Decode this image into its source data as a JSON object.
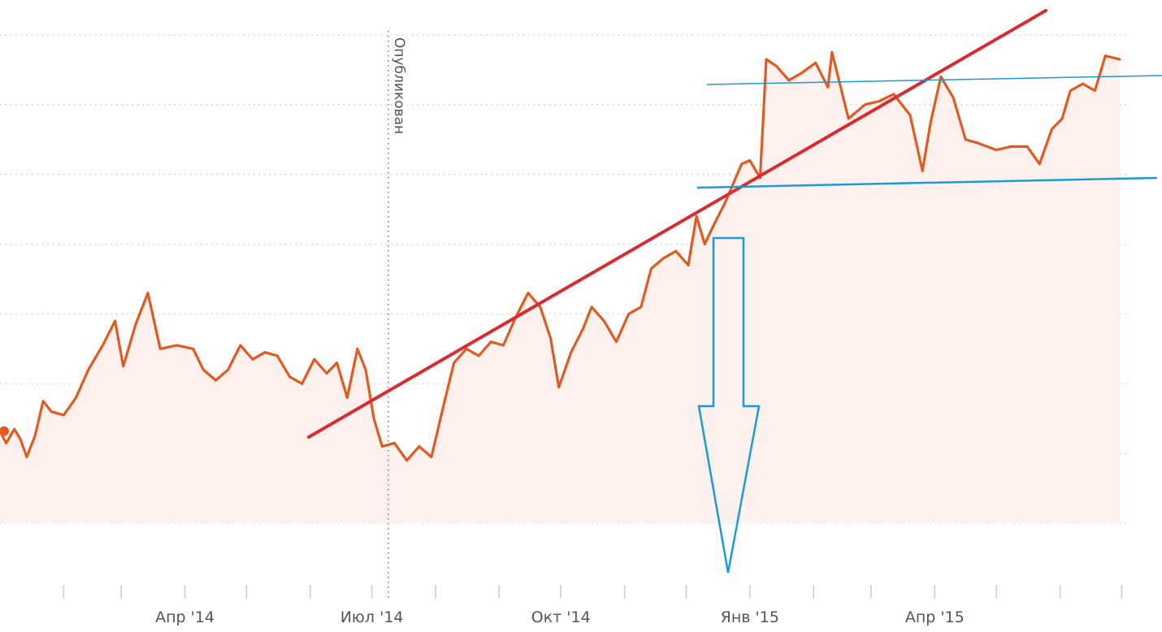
{
  "chart_data": {
    "type": "area",
    "title": "",
    "xlabel": "",
    "ylabel": "",
    "x_ticks": [
      {
        "label": "Апр '14",
        "date": "2014-04-01"
      },
      {
        "label": "Июл '14",
        "date": "2014-07-01"
      },
      {
        "label": "Окт '14",
        "date": "2014-10-01"
      },
      {
        "label": "Янв '15",
        "date": "2015-01-01"
      },
      {
        "label": "Апр '15",
        "date": "2015-04-01"
      }
    ],
    "y_tick_labels_visible": false,
    "grid": "horizontal dotted",
    "series": [
      {
        "points": [
          [
            "2014-01-01",
            43.2
          ],
          [
            "2014-01-04",
            41.5
          ],
          [
            "2014-01-08",
            43.5
          ],
          [
            "2014-01-11",
            42.0
          ],
          [
            "2014-01-14",
            39.5
          ],
          [
            "2014-01-18",
            42.5
          ],
          [
            "2014-01-22",
            47.5
          ],
          [
            "2014-01-26",
            46.0
          ],
          [
            "2014-02-01",
            45.5
          ],
          [
            "2014-02-07",
            48.0
          ],
          [
            "2014-02-13",
            52.0
          ],
          [
            "2014-02-20",
            55.5
          ],
          [
            "2014-02-26",
            59.0
          ],
          [
            "2014-03-02",
            52.5
          ],
          [
            "2014-03-08",
            58.5
          ],
          [
            "2014-03-14",
            63.0
          ],
          [
            "2014-03-20",
            55.0
          ],
          [
            "2014-03-28",
            55.5
          ],
          [
            "2014-04-05",
            55.0
          ],
          [
            "2014-04-10",
            52.0
          ],
          [
            "2014-04-16",
            50.5
          ],
          [
            "2014-04-22",
            52.0
          ],
          [
            "2014-04-28",
            55.5
          ],
          [
            "2014-05-04",
            53.5
          ],
          [
            "2014-05-10",
            54.5
          ],
          [
            "2014-05-16",
            54.0
          ],
          [
            "2014-05-22",
            51.0
          ],
          [
            "2014-05-28",
            50.0
          ],
          [
            "2014-06-03",
            53.5
          ],
          [
            "2014-06-09",
            51.5
          ],
          [
            "2014-06-14",
            53.0
          ],
          [
            "2014-06-19",
            48.0
          ],
          [
            "2014-06-24",
            55.0
          ],
          [
            "2014-06-28",
            52.0
          ],
          [
            "2014-07-02",
            45.0
          ],
          [
            "2014-07-06",
            41.0
          ],
          [
            "2014-07-12",
            41.5
          ],
          [
            "2014-07-18",
            39.0
          ],
          [
            "2014-07-24",
            41.0
          ],
          [
            "2014-07-30",
            39.5
          ],
          [
            "2014-08-05",
            47.0
          ],
          [
            "2014-08-10",
            53.0
          ],
          [
            "2014-08-16",
            55.0
          ],
          [
            "2014-08-22",
            54.0
          ],
          [
            "2014-08-28",
            56.0
          ],
          [
            "2014-09-03",
            55.5
          ],
          [
            "2014-09-09",
            59.5
          ],
          [
            "2014-09-15",
            63.0
          ],
          [
            "2014-09-21",
            61.0
          ],
          [
            "2014-09-26",
            56.5
          ],
          [
            "2014-09-30",
            49.5
          ],
          [
            "2014-10-06",
            54.5
          ],
          [
            "2014-10-12",
            58.0
          ],
          [
            "2014-10-16",
            61.0
          ],
          [
            "2014-10-22",
            59.0
          ],
          [
            "2014-10-28",
            56.0
          ],
          [
            "2014-11-03",
            60.0
          ],
          [
            "2014-11-09",
            61.0
          ],
          [
            "2014-11-14",
            66.5
          ],
          [
            "2014-11-20",
            68.0
          ],
          [
            "2014-11-26",
            69.0
          ],
          [
            "2014-12-02",
            67.0
          ],
          [
            "2014-12-06",
            74.0
          ],
          [
            "2014-12-10",
            70.0
          ],
          [
            "2014-12-14",
            72.5
          ],
          [
            "2014-12-20",
            76.0
          ],
          [
            "2014-12-28",
            81.5
          ],
          [
            "2015-01-01",
            82.0
          ],
          [
            "2015-01-06",
            79.5
          ],
          [
            "2015-01-09",
            96.5
          ],
          [
            "2015-01-14",
            95.5
          ],
          [
            "2015-01-20",
            93.5
          ],
          [
            "2015-01-26",
            94.5
          ],
          [
            "2015-02-02",
            96.0
          ],
          [
            "2015-02-08",
            92.5
          ],
          [
            "2015-02-10",
            97.5
          ],
          [
            "2015-02-18",
            88.0
          ],
          [
            "2015-02-26",
            90.0
          ],
          [
            "2015-03-05",
            90.5
          ],
          [
            "2015-03-12",
            91.5
          ],
          [
            "2015-03-20",
            88.5
          ],
          [
            "2015-03-26",
            80.5
          ],
          [
            "2015-03-30",
            87.5
          ],
          [
            "2015-04-04",
            94.0
          ],
          [
            "2015-04-10",
            91.0
          ],
          [
            "2015-04-16",
            85.0
          ],
          [
            "2015-04-22",
            84.5
          ],
          [
            "2015-05-01",
            83.5
          ],
          [
            "2015-05-08",
            84.0
          ],
          [
            "2015-05-16",
            84.0
          ],
          [
            "2015-05-22",
            81.5
          ],
          [
            "2015-05-28",
            86.5
          ],
          [
            "2015-06-02",
            88.0
          ],
          [
            "2015-06-06",
            92.0
          ],
          [
            "2015-06-12",
            93.0
          ],
          [
            "2015-06-18",
            92.0
          ],
          [
            "2015-06-23",
            97.0
          ],
          [
            "2015-06-30",
            96.5
          ]
        ],
        "color": "#e05a22",
        "fill": "#fdf1ed"
      }
    ],
    "xlim": [
      "2014-01-01",
      "2015-07-04"
    ],
    "ylim": [
      20,
      105
    ]
  },
  "annotations": {
    "published_label": "Опубликован",
    "published_date": "2014-07-09",
    "start_marker_color": "#e05a22",
    "red_trend_color": "#d92b32",
    "blue_channel_color": "#1a9bd7",
    "arrow_color": "#1a9bd7"
  }
}
